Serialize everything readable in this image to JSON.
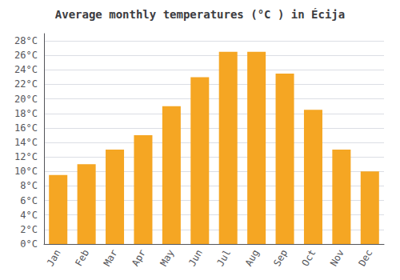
{
  "chart_data": {
    "type": "bar",
    "title": "Average monthly temperatures (°C ) in Écija",
    "categories": [
      "Jan",
      "Feb",
      "Mar",
      "Apr",
      "May",
      "Jun",
      "Jul",
      "Aug",
      "Sep",
      "Oct",
      "Nov",
      "Dec"
    ],
    "values": [
      9.5,
      11,
      13,
      15,
      19,
      23,
      26.5,
      26.5,
      23.5,
      18.5,
      13,
      10
    ],
    "color": "#F5A623",
    "ylim": [
      0,
      29
    ],
    "yticks": [
      {
        "value": 0,
        "label": "0°C"
      },
      {
        "value": 2,
        "label": "2°C"
      },
      {
        "value": 4,
        "label": "4°C"
      },
      {
        "value": 6,
        "label": "6°C"
      },
      {
        "value": 8,
        "label": "8°C"
      },
      {
        "value": 10,
        "label": "10°C"
      },
      {
        "value": 12,
        "label": "12°C"
      },
      {
        "value": 14,
        "label": "14°C"
      },
      {
        "value": 16,
        "label": "16°C"
      },
      {
        "value": 18,
        "label": "18°C"
      },
      {
        "value": 20,
        "label": "20°C"
      },
      {
        "value": 22,
        "label": "22°C"
      },
      {
        "value": 24,
        "label": "24°C"
      },
      {
        "value": 26,
        "label": "26°C"
      },
      {
        "value": 28,
        "label": "28°C"
      }
    ],
    "grid": true
  }
}
